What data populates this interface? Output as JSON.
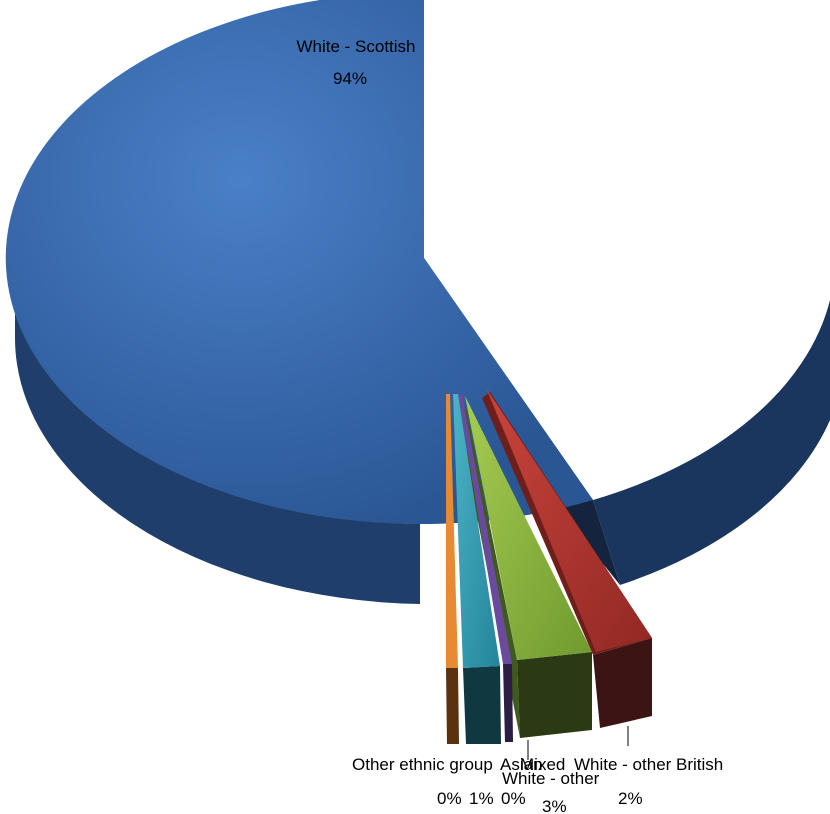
{
  "chart_data": {
    "type": "pie",
    "style": "3d-exploded",
    "title": "",
    "legend": "none",
    "slices": [
      {
        "label": "White - Scottish",
        "value": 94,
        "display": "94%",
        "color": "#3566ac"
      },
      {
        "label": "White - other British",
        "value": 2,
        "display": "2%",
        "color": "#a8332f"
      },
      {
        "label": "White - other",
        "value": 3,
        "display": "3%",
        "color": "#80a83a"
      },
      {
        "label": "Mixed",
        "value": 0,
        "display": "0%",
        "color": "#5e3f8a"
      },
      {
        "label": "Asian",
        "value": 1,
        "display": "1%",
        "color": "#2b93a7"
      },
      {
        "label": "Other ethnic group",
        "value": 0,
        "display": "0%",
        "color": "#e07b26"
      }
    ]
  }
}
